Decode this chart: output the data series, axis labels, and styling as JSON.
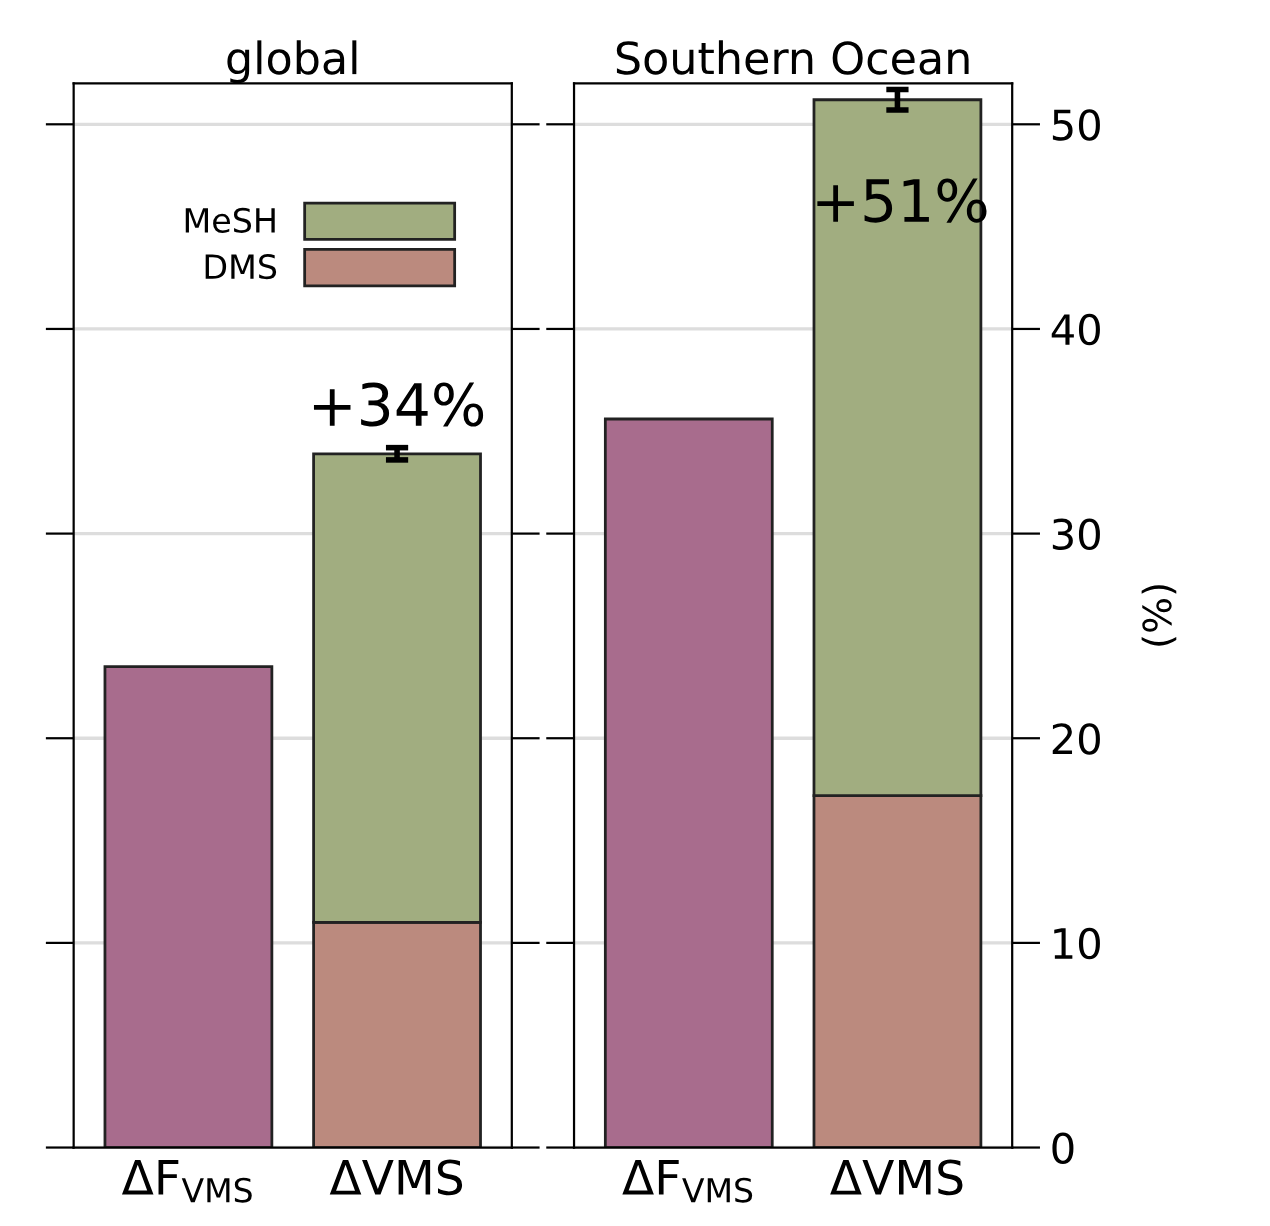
{
  "chart_data": [
    {
      "type": "bar",
      "title": "global",
      "categories": [
        "ΔF$_{VMS}$",
        "ΔVMS"
      ],
      "stacked": true,
      "series": [
        {
          "color": "#a86c8d",
          "values": [
            23.5,
            null
          ]
        },
        {
          "name": "DMS",
          "color": "#bb8a7e",
          "values": [
            null,
            11.0
          ]
        },
        {
          "name": "MeSH",
          "color": "#a1ad80",
          "values": [
            null,
            22.9
          ],
          "errors": [
            null,
            0.3
          ]
        }
      ],
      "ylim": [
        0,
        52
      ],
      "yticks": [
        0,
        10,
        20,
        30,
        40,
        50
      ],
      "grid": "y",
      "legend": "top right",
      "tick_labels": "x",
      "annotations": [
        {
          "text": "+34%",
          "x": "ΔVMS",
          "y": 34
        }
      ]
    },
    {
      "type": "bar",
      "title": "Southern Ocean",
      "categories": [
        "ΔF$_{VMS}$",
        "ΔVMS"
      ],
      "stacked": true,
      "ylabel": "(%)",
      "series": [
        {
          "color": "#a86c8d",
          "values": [
            35.6,
            null
          ]
        },
        {
          "color": "#bb8a7e",
          "values": [
            null,
            17.2
          ]
        },
        {
          "color": "#a1ad80",
          "values": [
            null,
            34.0
          ],
          "errors": [
            null,
            0.5
          ]
        }
      ],
      "ylim": [
        0,
        52
      ],
      "yticks": [
        0,
        10,
        20,
        30,
        40,
        50
      ],
      "grid": "y",
      "legend": false,
      "annotations": [
        "+51%"
      ]
    }
  ]
}
